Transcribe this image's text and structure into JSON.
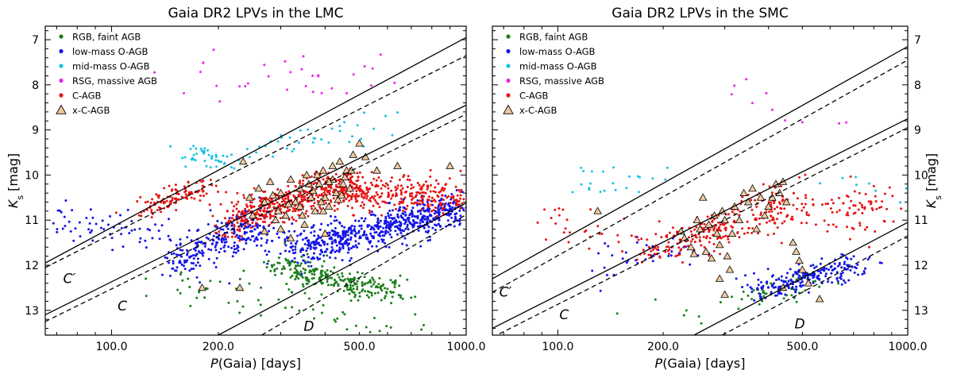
{
  "chart_data": [
    {
      "type": "scatter",
      "panel": "left",
      "title": "Gaia DR2 LPVs in the LMC",
      "xlabel_italic": "P",
      "xlabel_rest": "(Gaia) [days]",
      "xscale": "log",
      "xlim": [
        65,
        1000
      ],
      "x_ticks": [
        "100.0",
        "200.0",
        "500.0",
        "1000.0"
      ],
      "ylabel_italic": "K",
      "ylabel_sub": "s",
      "ylabel_rest": " [mag]",
      "ylim": [
        13.55,
        6.7
      ],
      "y_ticks": [
        "7",
        "8",
        "9",
        "10",
        "11",
        "12",
        "13"
      ],
      "y_axis_side": "left",
      "legend_position": "top-left",
      "legend": [
        {
          "label": "RGB, faint AGB",
          "color": "#1a7f1a",
          "marker": "dot"
        },
        {
          "label": "low-mass O-AGB",
          "color": "#1414e6",
          "marker": "dot"
        },
        {
          "label": "mid-mass O-AGB",
          "color": "#19c3e6",
          "marker": "dot"
        },
        {
          "label": "RSG, massive AGB",
          "color": "#ee22ee",
          "marker": "dot"
        },
        {
          "label": "C-AGB",
          "color": "#e61414",
          "marker": "dot"
        },
        {
          "label": "x-C-AGB",
          "color": "#f2c9a0",
          "marker": "triangle"
        }
      ],
      "sequence_labels": [
        {
          "text": "C′",
          "x": 73,
          "y": 12.4
        },
        {
          "text": "C",
          "x": 104,
          "y": 13.0
        },
        {
          "text": "D",
          "x": 348,
          "y": 13.45
        }
      ],
      "lines": [
        {
          "style": "solid",
          "x": [
            65,
            1000
          ],
          "y": [
            11.95,
            6.95
          ]
        },
        {
          "style": "dashed",
          "x": [
            65,
            1000
          ],
          "y": [
            12.05,
            7.35
          ]
        },
        {
          "style": "solid",
          "x": [
            65,
            1000
          ],
          "y": [
            13.1,
            8.45
          ]
        },
        {
          "style": "dashed",
          "x": [
            65,
            1000
          ],
          "y": [
            13.25,
            8.65
          ]
        },
        {
          "style": "solid",
          "x": [
            200,
            1000
          ],
          "y": [
            13.55,
            10.62
          ]
        },
        {
          "style": "dashed",
          "x": [
            265,
            1000
          ],
          "y": [
            13.55,
            10.88
          ]
        }
      ],
      "clusters": [
        {
          "group": "RGB, faint AGB",
          "n": 260,
          "x": [
            290,
            620
          ],
          "y": [
            12.0,
            12.6
          ],
          "slope": 2.5,
          "scatter": 0.25
        },
        {
          "group": "RGB, faint AGB",
          "n": 60,
          "x": [
            130,
            700
          ],
          "y": [
            12.3,
            13.4
          ],
          "slope": 0,
          "scatter": 0.35
        },
        {
          "group": "low-mass O-AGB",
          "n": 650,
          "x": [
            330,
            960
          ],
          "y": [
            11.7,
            10.7
          ],
          "slope": 2.3,
          "scatter": 0.35
        },
        {
          "group": "low-mass O-AGB",
          "n": 260,
          "x": [
            150,
            280
          ],
          "y": [
            11.9,
            11.05
          ],
          "slope": 2.5,
          "scatter": 0.4
        },
        {
          "group": "low-mass O-AGB",
          "n": 60,
          "x": [
            68,
            140
          ],
          "y": [
            11.0,
            11.3
          ],
          "slope": 0,
          "scatter": 0.4
        },
        {
          "group": "mid-mass O-AGB",
          "n": 45,
          "x": [
            165,
            205
          ],
          "y": [
            9.45,
            9.75
          ],
          "slope": 0,
          "scatter": 0.18
        },
        {
          "group": "mid-mass O-AGB",
          "n": 35,
          "x": [
            260,
            620
          ],
          "y": [
            9.4,
            8.9
          ],
          "slope": 0,
          "scatter": 0.25
        },
        {
          "group": "RSG, massive AGB",
          "n": 32,
          "x": [
            150,
            650
          ],
          "y": [
            7.5,
            7.9
          ],
          "slope": 0,
          "scatter": 0.55
        },
        {
          "group": "C-AGB",
          "n": 110,
          "x": [
            125,
            185
          ],
          "y": [
            10.75,
            10.25
          ],
          "slope": 0,
          "scatter": 0.2
        },
        {
          "group": "C-AGB",
          "n": 480,
          "x": [
            210,
            490
          ],
          "y": [
            11.05,
            10.15
          ],
          "slope": 0,
          "scatter": 0.35
        },
        {
          "group": "C-AGB",
          "n": 260,
          "x": [
            450,
            960
          ],
          "y": [
            10.35,
            10.5
          ],
          "slope": 0,
          "scatter": 0.38
        }
      ],
      "triangles": [
        [
          235,
          9.7
        ],
        [
          260,
          10.3
        ],
        [
          270,
          10.6
        ],
        [
          280,
          10.15
        ],
        [
          295,
          10.8
        ],
        [
          300,
          10.4
        ],
        [
          310,
          10.9
        ],
        [
          320,
          10.1
        ],
        [
          330,
          10.6
        ],
        [
          340,
          10.3
        ],
        [
          345,
          10.9
        ],
        [
          355,
          10.0
        ],
        [
          365,
          10.5
        ],
        [
          375,
          10.8
        ],
        [
          385,
          10.2
        ],
        [
          395,
          9.9
        ],
        [
          400,
          10.5
        ],
        [
          410,
          10.7
        ],
        [
          420,
          10.1
        ],
        [
          430,
          10.4
        ],
        [
          440,
          9.7
        ],
        [
          450,
          10.2
        ],
        [
          460,
          9.9
        ],
        [
          470,
          10.3
        ],
        [
          480,
          9.55
        ],
        [
          300,
          11.2
        ],
        [
          320,
          11.4
        ],
        [
          290,
          11.0
        ],
        [
          350,
          11.1
        ],
        [
          400,
          11.3
        ],
        [
          380,
          10.0
        ],
        [
          420,
          9.8
        ],
        [
          270,
          11.25
        ],
        [
          250,
          10.9
        ],
        [
          340,
          10.7
        ],
        [
          360,
          10.2
        ],
        [
          390,
          10.6
        ],
        [
          410,
          10.15
        ],
        [
          435,
          10.55
        ],
        [
          455,
          10.05
        ],
        [
          475,
          9.9
        ],
        [
          500,
          9.3
        ],
        [
          520,
          9.6
        ],
        [
          560,
          9.9
        ],
        [
          640,
          9.8
        ],
        [
          900,
          9.8
        ],
        [
          230,
          12.5
        ],
        [
          180,
          12.5
        ],
        [
          245,
          10.5
        ],
        [
          285,
          10.45
        ],
        [
          315,
          10.65
        ],
        [
          370,
          10.35
        ],
        [
          395,
          10.8
        ],
        [
          445,
          10.45
        ]
      ]
    },
    {
      "type": "scatter",
      "panel": "right",
      "title": "Gaia DR2 LPVs in the SMC",
      "xlabel_italic": "P",
      "xlabel_rest": "(Gaia) [days]",
      "xscale": "log",
      "xlim": [
        65,
        1000
      ],
      "x_ticks": [
        "100.0",
        "200.0",
        "500.0",
        "1000.0"
      ],
      "ylabel_italic": "K",
      "ylabel_sub": "s",
      "ylabel_rest": " [mag]",
      "ylim": [
        13.55,
        6.7
      ],
      "y_ticks": [
        "7",
        "8",
        "9",
        "10",
        "11",
        "12",
        "13"
      ],
      "y_axis_side": "right",
      "legend_position": "top-left",
      "legend": [
        {
          "label": "RGB, faint AGB",
          "color": "#1a7f1a",
          "marker": "dot"
        },
        {
          "label": "low-mass O-AGB",
          "color": "#1414e6",
          "marker": "dot"
        },
        {
          "label": "mid-mass O-AGB",
          "color": "#19c3e6",
          "marker": "dot"
        },
        {
          "label": "RSG, massive AGB",
          "color": "#ee22ee",
          "marker": "dot"
        },
        {
          "label": "C-AGB",
          "color": "#e61414",
          "marker": "dot"
        },
        {
          "label": "x-C-AGB",
          "color": "#f2c9a0",
          "marker": "triangle"
        }
      ],
      "sequence_labels": [
        {
          "text": "C′",
          "x": 68,
          "y": 12.7
        },
        {
          "text": "C",
          "x": 101,
          "y": 13.2
        },
        {
          "text": "D",
          "x": 475,
          "y": 13.4
        }
      ],
      "lines": [
        {
          "style": "solid",
          "x": [
            65,
            1000
          ],
          "y": [
            12.3,
            7.15
          ]
        },
        {
          "style": "dashed",
          "x": [
            65,
            1000
          ],
          "y": [
            12.6,
            7.45
          ]
        },
        {
          "style": "solid",
          "x": [
            65,
            1000
          ],
          "y": [
            13.4,
            8.75
          ]
        },
        {
          "style": "dashed",
          "x": [
            65,
            1000
          ],
          "y": [
            13.6,
            8.95
          ]
        },
        {
          "style": "solid",
          "x": [
            245,
            1000
          ],
          "y": [
            13.55,
            11.05
          ]
        },
        {
          "style": "dashed",
          "x": [
            295,
            1000
          ],
          "y": [
            13.55,
            11.35
          ]
        }
      ],
      "clusters": [
        {
          "group": "RGB, faint AGB",
          "n": 45,
          "x": [
            330,
            520
          ],
          "y": [
            12.8,
            12.4
          ],
          "slope": 0,
          "scatter": 0.25
        },
        {
          "group": "RGB, faint AGB",
          "n": 6,
          "x": [
            90,
            300
          ],
          "y": [
            12.9,
            13.1
          ],
          "slope": 0,
          "scatter": 0.3
        },
        {
          "group": "low-mass O-AGB",
          "n": 210,
          "x": [
            370,
            720
          ],
          "y": [
            12.55,
            11.95
          ],
          "slope": 0,
          "scatter": 0.25
        },
        {
          "group": "low-mass O-AGB",
          "n": 40,
          "x": [
            130,
            250
          ],
          "y": [
            11.95,
            11.6
          ],
          "slope": 0,
          "scatter": 0.4
        },
        {
          "group": "mid-mass O-AGB",
          "n": 22,
          "x": [
            110,
            230
          ],
          "y": [
            10.0,
            10.3
          ],
          "slope": 0,
          "scatter": 0.35
        },
        {
          "group": "mid-mass O-AGB",
          "n": 8,
          "x": [
            500,
            900
          ],
          "y": [
            9.8,
            10.3
          ],
          "slope": 0,
          "scatter": 0.4
        },
        {
          "group": "RSG, massive AGB",
          "n": 10,
          "x": [
            250,
            700
          ],
          "y": [
            8.2,
            9.0
          ],
          "slope": 0,
          "scatter": 0.4
        },
        {
          "group": "C-AGB",
          "n": 120,
          "x": [
            180,
            300
          ],
          "y": [
            11.7,
            11.1
          ],
          "slope": 0,
          "scatter": 0.3
        },
        {
          "group": "C-AGB",
          "n": 150,
          "x": [
            270,
            480
          ],
          "y": [
            11.3,
            10.5
          ],
          "slope": 0,
          "scatter": 0.45
        },
        {
          "group": "C-AGB",
          "n": 80,
          "x": [
            520,
            900
          ],
          "y": [
            10.9,
            10.7
          ],
          "slope": 0,
          "scatter": 0.45
        },
        {
          "group": "C-AGB",
          "n": 30,
          "x": [
            90,
            180
          ],
          "y": [
            11.0,
            11.5
          ],
          "slope": 0,
          "scatter": 0.4
        }
      ],
      "triangles": [
        [
          130,
          10.8
        ],
        [
          230,
          11.4
        ],
        [
          240,
          11.6
        ],
        [
          250,
          11.0
        ],
        [
          255,
          11.2
        ],
        [
          260,
          10.5
        ],
        [
          265,
          11.7
        ],
        [
          270,
          11.1
        ],
        [
          275,
          11.85
        ],
        [
          280,
          10.9
        ],
        [
          285,
          11.3
        ],
        [
          290,
          11.55
        ],
        [
          295,
          10.8
        ],
        [
          300,
          11.0
        ],
        [
          305,
          11.8
        ],
        [
          310,
          12.1
        ],
        [
          315,
          11.3
        ],
        [
          320,
          10.7
        ],
        [
          330,
          11.0
        ],
        [
          340,
          10.4
        ],
        [
          350,
          10.6
        ],
        [
          360,
          10.3
        ],
        [
          370,
          11.2
        ],
        [
          380,
          10.5
        ],
        [
          390,
          10.9
        ],
        [
          400,
          10.7
        ],
        [
          410,
          10.5
        ],
        [
          420,
          10.2
        ],
        [
          430,
          10.4
        ],
        [
          440,
          10.15
        ],
        [
          450,
          10.6
        ],
        [
          470,
          11.5
        ],
        [
          480,
          11.7
        ],
        [
          490,
          11.9
        ],
        [
          500,
          12.1
        ],
        [
          520,
          12.4
        ],
        [
          560,
          12.75
        ],
        [
          290,
          12.3
        ],
        [
          300,
          12.65
        ],
        [
          440,
          12.5
        ],
        [
          225,
          11.25
        ],
        [
          245,
          11.75
        ]
      ]
    }
  ]
}
